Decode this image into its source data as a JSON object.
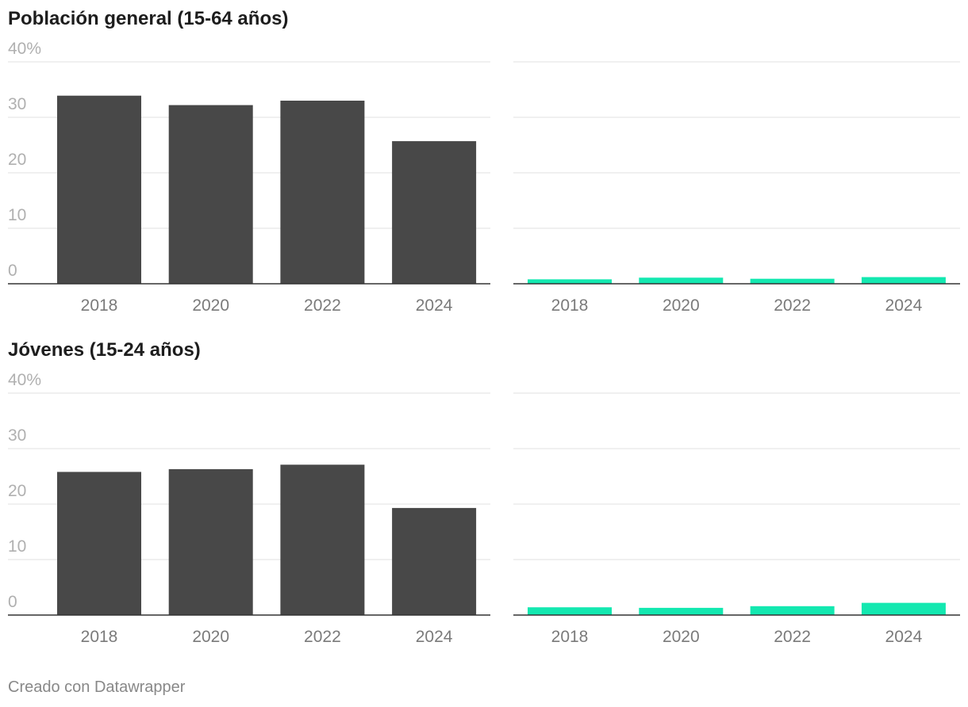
{
  "footer": "Creado con Datawrapper",
  "colors": {
    "left": "#484848",
    "right": "#13e8b0"
  },
  "chart_data": [
    {
      "type": "bar",
      "title": "Población general (15-64 años)",
      "categories": [
        "2018",
        "2020",
        "2022",
        "2024"
      ],
      "ylim": [
        0,
        40
      ],
      "yticks": [
        "40%",
        "30",
        "20",
        "10",
        "0"
      ],
      "grid": true,
      "series": [
        {
          "values": [
            33.9,
            32.2,
            33.0,
            25.7
          ]
        },
        {
          "values": [
            0.8,
            1.1,
            0.9,
            1.2
          ]
        }
      ]
    },
    {
      "type": "bar",
      "title": "Jóvenes (15-24 años)",
      "categories": [
        "2018",
        "2020",
        "2022",
        "2024"
      ],
      "ylim": [
        0,
        40
      ],
      "yticks": [
        "40%",
        "30",
        "20",
        "10",
        "0"
      ],
      "grid": true,
      "series": [
        {
          "values": [
            25.8,
            26.3,
            27.1,
            19.3
          ]
        },
        {
          "values": [
            1.4,
            1.3,
            1.6,
            2.2
          ]
        }
      ]
    }
  ]
}
